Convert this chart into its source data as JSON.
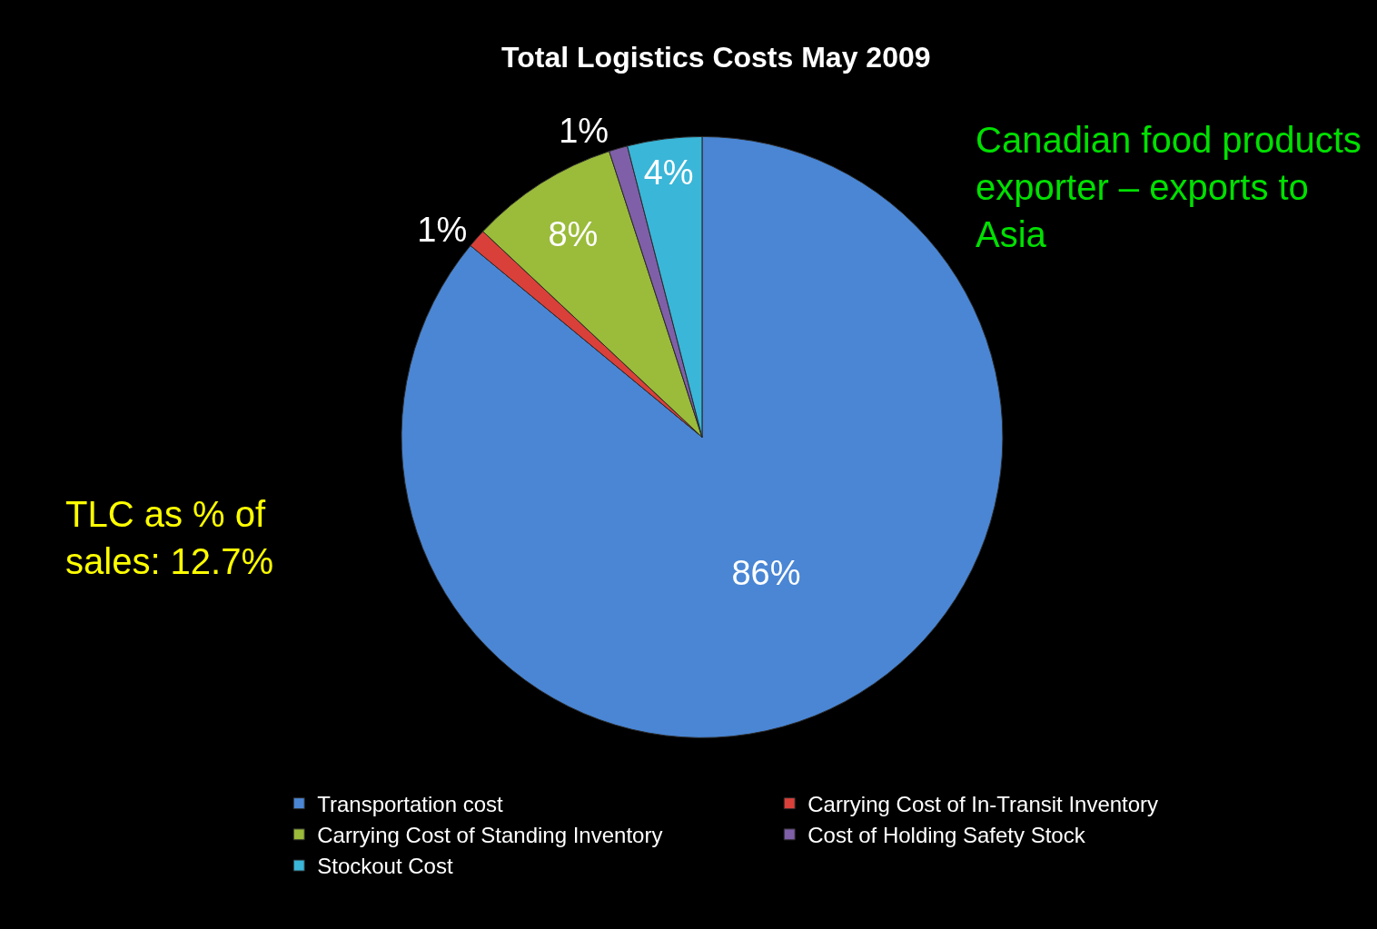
{
  "chart_data": {
    "type": "pie",
    "title": "Total Logistics Costs May 2009",
    "categories": [
      "Transportation cost",
      "Carrying Cost of In-Transit Inventory",
      "Carrying Cost of Standing Inventory",
      "Cost of Holding Safety Stock",
      "Stockout Cost"
    ],
    "values": [
      86,
      1,
      8,
      1,
      4
    ],
    "value_labels": [
      "86%",
      "1%",
      "8%",
      "1%",
      "4%"
    ],
    "colors": [
      "#4a86d4",
      "#d9403a",
      "#9bbb3b",
      "#7f5fa8",
      "#3ab6d8"
    ],
    "legend": "bottom",
    "annotations": [
      "Canadian food products exporter – exports to Asia",
      "TLC as % of sales: 12.7%"
    ]
  }
}
